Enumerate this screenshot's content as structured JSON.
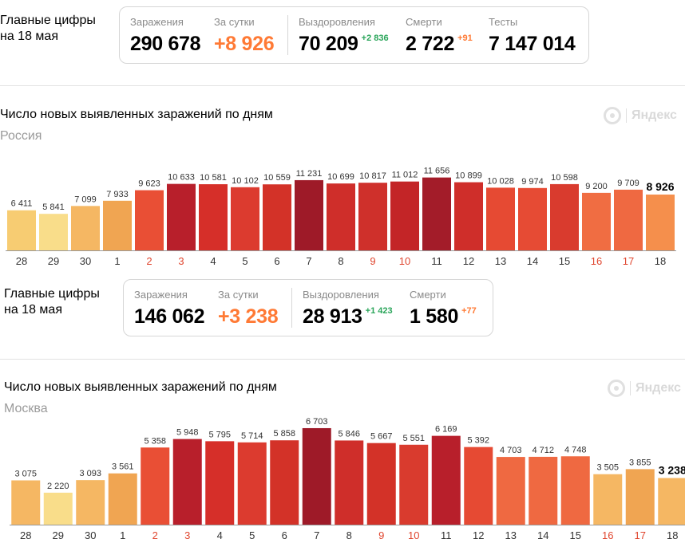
{
  "russia": {
    "headline_1": "Главные цифры",
    "headline_2": "на 18 мая",
    "stats": {
      "cases_label": "Заражения",
      "cases_value": "290 678",
      "daily_label": "За сутки",
      "daily_value": "+8 926",
      "recovered_label": "Выздоровления",
      "recovered_value": "70 209",
      "recovered_delta": "+2 836",
      "deaths_label": "Смерти",
      "deaths_value": "2 722",
      "deaths_delta": "+91",
      "tests_label": "Тесты",
      "tests_value": "7 147 014"
    },
    "chart_title": "Число новых выявленных заражений по дням",
    "chart_subtitle": "Россия",
    "watermark": "Яндекс"
  },
  "moscow": {
    "headline_1": "Главные цифры",
    "headline_2": "на 18 мая",
    "stats": {
      "cases_label": "Заражения",
      "cases_value": "146 062",
      "daily_label": "За сутки",
      "daily_value": "+3 238",
      "recovered_label": "Выздоровления",
      "recovered_value": "28 913",
      "recovered_delta": "+1 423",
      "deaths_label": "Смерти",
      "deaths_value": "1 580",
      "deaths_delta": "+77"
    },
    "chart_title": "Число новых выявленных заражений по дням",
    "chart_subtitle": "Москва",
    "watermark": "Яндекс"
  },
  "colors": {
    "orange": "#ff7a35",
    "green": "#2aa55a",
    "highlight_tick": "#e0462f"
  },
  "chart_data": [
    {
      "type": "bar",
      "subtitle": "Россия",
      "categories": [
        "28",
        "29",
        "30",
        "1",
        "2",
        "3",
        "4",
        "5",
        "6",
        "7",
        "8",
        "9",
        "10",
        "11",
        "12",
        "13",
        "14",
        "15",
        "16",
        "17",
        "18"
      ],
      "values": [
        6411,
        5841,
        7099,
        7933,
        9623,
        10633,
        10581,
        10102,
        10559,
        11231,
        10699,
        10817,
        11012,
        11656,
        10899,
        10028,
        9974,
        10598,
        9200,
        9709,
        8926
      ],
      "value_labels": [
        "6 411",
        "5 841",
        "7 099",
        "7 933",
        "9 623",
        "10 633",
        "10 581",
        "10 102",
        "10 559",
        "11 231",
        "10 699",
        "10 817",
        "11 012",
        "11 656",
        "10 899",
        "10 028",
        "9 974",
        "10 598",
        "9 200",
        "9 709",
        "8 926"
      ],
      "highlighted_ticks": [
        "2",
        "3",
        "9",
        "10",
        "16",
        "17"
      ],
      "bar_colors": [
        "#f7cc72",
        "#f9dd8a",
        "#f5b763",
        "#f0a552",
        "#e94f35",
        "#b81f2b",
        "#d62f29",
        "#dc3b2f",
        "#d33228",
        "#9e1a28",
        "#cf2e2a",
        "#cf302b",
        "#c32527",
        "#a31c29",
        "#cf2e2a",
        "#e64a33",
        "#e64b34",
        "#d93b2e",
        "#f06d42",
        "#ef6941",
        "#f58f4c"
      ],
      "ylim": [
        0,
        12500
      ]
    },
    {
      "type": "bar",
      "subtitle": "Москва",
      "categories": [
        "28",
        "29",
        "30",
        "1",
        "2",
        "3",
        "4",
        "5",
        "6",
        "7",
        "8",
        "9",
        "10",
        "11",
        "12",
        "13",
        "14",
        "15",
        "16",
        "17",
        "18"
      ],
      "values": [
        3075,
        2220,
        3093,
        3561,
        5358,
        5948,
        5795,
        5714,
        5858,
        6703,
        5846,
        5667,
        5551,
        6169,
        5392,
        4703,
        4712,
        4748,
        3505,
        3855,
        3238
      ],
      "value_labels": [
        "3 075",
        "2 220",
        "3 093",
        "3 561",
        "5 358",
        "5 948",
        "5 795",
        "5 714",
        "5 858",
        "6 703",
        "5 846",
        "5 667",
        "5 551",
        "6 169",
        "5 392",
        "4 703",
        "4 712",
        "4 748",
        "3 505",
        "3 855",
        "3 238"
      ],
      "highlighted_ticks": [
        "2",
        "3",
        "9",
        "10",
        "16",
        "17"
      ],
      "bar_colors": [
        "#f5b763",
        "#f9dd8a",
        "#f5b763",
        "#f0a552",
        "#e94f35",
        "#b81f2b",
        "#d62f29",
        "#dc3b2f",
        "#d33228",
        "#9e1a28",
        "#cf2e2a",
        "#d33228",
        "#d93b2e",
        "#b81f2b",
        "#e64a33",
        "#ef6941",
        "#ef6941",
        "#ef6941",
        "#f5b763",
        "#f0a552",
        "#f5b763"
      ],
      "ylim": [
        0,
        7200
      ]
    }
  ]
}
